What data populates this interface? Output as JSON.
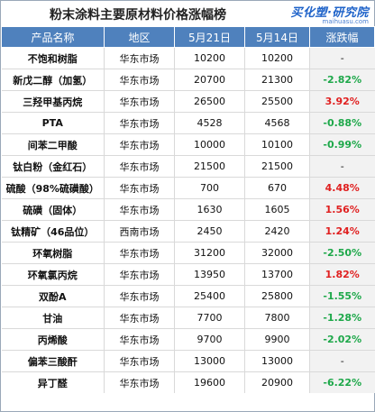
{
  "title": "粉末涂料主要原材料价格涨幅榜",
  "logo": {
    "text": "买化塑·研究院",
    "url": "maihuasu.com"
  },
  "headers": [
    "产品名称",
    "地区",
    "5月21日",
    "5月14日",
    "涨跌幅"
  ],
  "rows": [
    {
      "name": "不饱和树脂",
      "region": "华东市场",
      "may21": "10200",
      "may14": "10200",
      "change": "-",
      "dir": "flat"
    },
    {
      "name": "新戊二醇（加氢）",
      "region": "华东市场",
      "may21": "20700",
      "may14": "21300",
      "change": "-2.82%",
      "dir": "down"
    },
    {
      "name": "三羟甲基丙烷",
      "region": "华东市场",
      "may21": "26500",
      "may14": "25500",
      "change": "3.92%",
      "dir": "up"
    },
    {
      "name": "PTA",
      "region": "华东市场",
      "may21": "4528",
      "may14": "4568",
      "change": "-0.88%",
      "dir": "down"
    },
    {
      "name": "间苯二甲酸",
      "region": "华东市场",
      "may21": "10000",
      "may14": "10100",
      "change": "-0.99%",
      "dir": "down"
    },
    {
      "name": "钛白粉（金红石）",
      "region": "华东市场",
      "may21": "21500",
      "may14": "21500",
      "change": "-",
      "dir": "flat"
    },
    {
      "name": "硫酸（98%硫磺酸）",
      "region": "华东市场",
      "may21": "700",
      "may14": "670",
      "change": "4.48%",
      "dir": "up"
    },
    {
      "name": "硫磺（固体）",
      "region": "华东市场",
      "may21": "1630",
      "may14": "1605",
      "change": "1.56%",
      "dir": "up"
    },
    {
      "name": "钛精矿（46品位）",
      "region": "西南市场",
      "may21": "2450",
      "may14": "2420",
      "change": "1.24%",
      "dir": "up"
    },
    {
      "name": "环氧树脂",
      "region": "华东市场",
      "may21": "31200",
      "may14": "32000",
      "change": "-2.50%",
      "dir": "down"
    },
    {
      "name": "环氧氯丙烷",
      "region": "华东市场",
      "may21": "13950",
      "may14": "13700",
      "change": "1.82%",
      "dir": "up"
    },
    {
      "name": "双酚A",
      "region": "华东市场",
      "may21": "25400",
      "may14": "25800",
      "change": "-1.55%",
      "dir": "down"
    },
    {
      "name": "甘油",
      "region": "华东市场",
      "may21": "7700",
      "may14": "7800",
      "change": "-1.28%",
      "dir": "down"
    },
    {
      "name": "丙烯酸",
      "region": "华东市场",
      "may21": "9700",
      "may14": "9900",
      "change": "-2.02%",
      "dir": "down"
    },
    {
      "name": "偏苯三酸酐",
      "region": "华东市场",
      "may21": "13000",
      "may14": "13000",
      "change": "-",
      "dir": "flat"
    },
    {
      "name": "异丁醛",
      "region": "华东市场",
      "may21": "19600",
      "may14": "20900",
      "change": "-6.22%",
      "dir": "down"
    }
  ],
  "colors": {
    "header_bg": "#4f81bd",
    "up": "#e02020",
    "down": "#1ea84a"
  }
}
